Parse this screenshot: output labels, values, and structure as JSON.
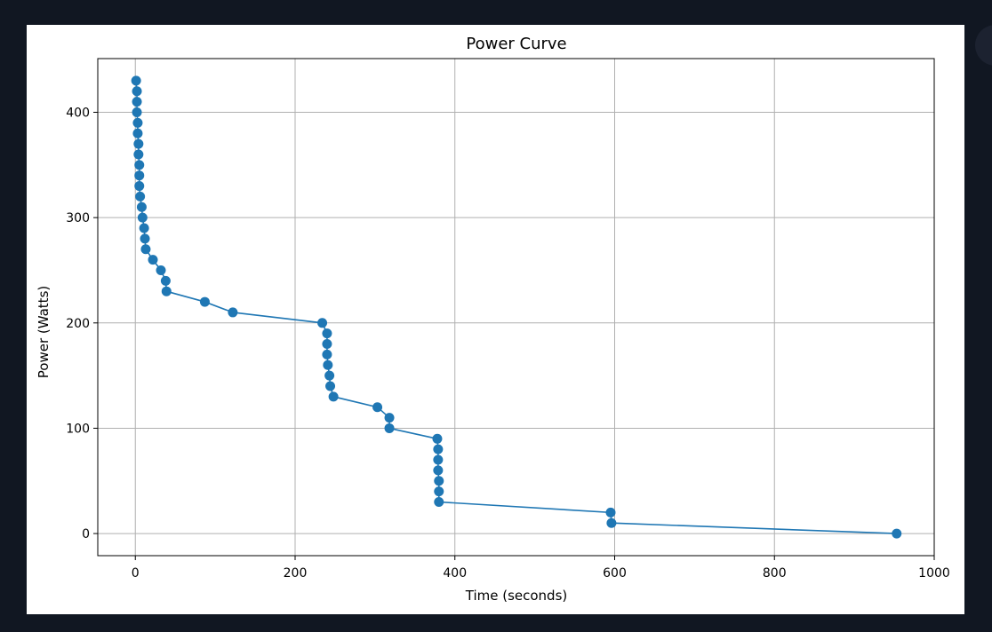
{
  "chart_data": {
    "type": "line",
    "title": "Power Curve",
    "xlabel": "Time (seconds)",
    "ylabel": "Power (Watts)",
    "xlim": [
      -47,
      1000
    ],
    "ylim": [
      -21,
      451
    ],
    "xticks": [
      0,
      200,
      400,
      600,
      800,
      1000
    ],
    "yticks": [
      0,
      100,
      200,
      300,
      400
    ],
    "grid": true,
    "legend": "none",
    "series": [
      {
        "color": "#1f77b4",
        "marker": "circle",
        "x": [
          1,
          2,
          2,
          2,
          3,
          3,
          4,
          4,
          5,
          5,
          5,
          6,
          8,
          9,
          11,
          12,
          13,
          22,
          32,
          38,
          39,
          87,
          122,
          234,
          240,
          240,
          240,
          241,
          243,
          244,
          248,
          303,
          318,
          318,
          378,
          379,
          379,
          379,
          380,
          380,
          380,
          595,
          596,
          953
        ],
        "y": [
          430,
          420,
          410,
          400,
          390,
          380,
          370,
          360,
          350,
          340,
          330,
          320,
          310,
          300,
          290,
          280,
          270,
          260,
          250,
          240,
          230,
          220,
          210,
          200,
          190,
          180,
          170,
          160,
          150,
          140,
          130,
          120,
          110,
          100,
          90,
          80,
          70,
          60,
          50,
          40,
          30,
          20,
          10,
          0
        ]
      }
    ]
  }
}
